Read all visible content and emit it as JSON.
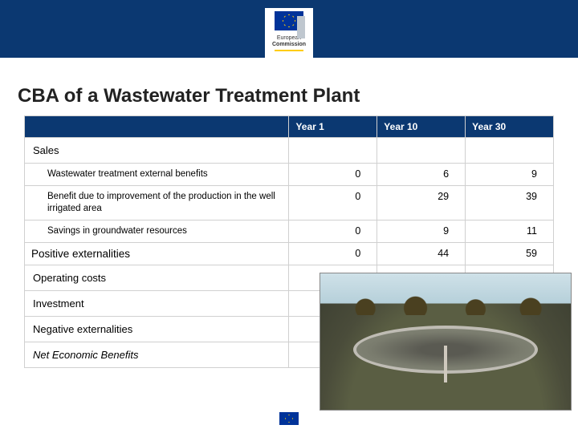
{
  "header": {
    "logo_top": "European",
    "logo_bottom": "Commission",
    "bar_color": "#0b3871",
    "flag_bg": "#003399",
    "flag_star": "#ffcc00"
  },
  "title": "CBA of a Wastewater Treatment Plant",
  "table": {
    "columns": [
      "",
      "Year 1",
      "Year 10",
      "Year 30"
    ],
    "header_bg": "#0b3871",
    "header_fg": "#ffffff",
    "border_color": "#d0d0d0",
    "label_fontsize": 12,
    "rows": [
      {
        "type": "section",
        "label": "Sales"
      },
      {
        "type": "item",
        "label": "Wastewater treatment external benefits",
        "values": [
          "0",
          "6",
          "9"
        ]
      },
      {
        "type": "item",
        "label": "Benefit due to improvement of the production in the well irrigated area",
        "values": [
          "0",
          "29",
          "39"
        ]
      },
      {
        "type": "item",
        "label": "Savings in groundwater resources",
        "values": [
          "0",
          "9",
          "11"
        ]
      },
      {
        "type": "total",
        "label": "Positive externalities",
        "values": [
          "0",
          "44",
          "59"
        ]
      },
      {
        "type": "section",
        "label": "Operating costs"
      },
      {
        "type": "section",
        "label": "Investment"
      },
      {
        "type": "section",
        "label": "Negative externalities"
      },
      {
        "type": "section_italic",
        "label": "Net Economic Benefits"
      }
    ]
  },
  "photo": {
    "alt": "Wastewater treatment plant circular clarifier tank",
    "sky_color": "#cfe1e8",
    "ground_color": "#5a5e43",
    "tank_rim": "#bfbcb4"
  }
}
